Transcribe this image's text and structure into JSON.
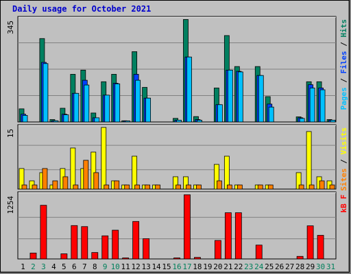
{
  "title": "Daily usage for October 2021",
  "colors": {
    "hits": "#008060",
    "files": "#0040ff",
    "pages": "#00c0ff",
    "visits": "#ffff00",
    "sites": "#ff8000",
    "kbytes": "#ff0000",
    "weekend_label": "#00805c",
    "weekday_label": "#000000",
    "title": "#0000cc",
    "panel_bg": "#c0c0c0"
  },
  "chart_data": [
    {
      "type": "bar",
      "panel": "hits-files-pages",
      "ymax_label": "345",
      "ylim": [
        0,
        345
      ],
      "legend": [
        "Pages",
        "Files",
        "Hits"
      ],
      "categories": [
        "1",
        "2",
        "3",
        "4",
        "5",
        "6",
        "7",
        "8",
        "9",
        "10",
        "11",
        "12",
        "13",
        "14",
        "15",
        "16",
        "17",
        "18",
        "19",
        "20",
        "21",
        "22",
        "23",
        "24",
        "25",
        "26",
        "27",
        "28",
        "29",
        "30",
        "31"
      ],
      "series": [
        {
          "name": "Hits",
          "values": [
            44,
            0,
            280,
            8,
            46,
            160,
            174,
            30,
            135,
            160,
            4,
            236,
            116,
            0,
            0,
            12,
            344,
            18,
            0,
            114,
            290,
            186,
            0,
            186,
            85,
            0,
            0,
            17,
            135,
            135,
            8
          ]
        },
        {
          "name": "Files",
          "values": [
            26,
            0,
            200,
            4,
            26,
            96,
            140,
            14,
            90,
            130,
            2,
            160,
            80,
            0,
            0,
            6,
            218,
            8,
            0,
            58,
            174,
            170,
            0,
            156,
            60,
            0,
            0,
            14,
            125,
            114,
            6
          ]
        },
        {
          "name": "Pages",
          "values": [
            22,
            0,
            196,
            4,
            24,
            96,
            124,
            14,
            90,
            128,
            2,
            140,
            80,
            0,
            0,
            6,
            218,
            6,
            0,
            58,
            174,
            168,
            0,
            156,
            50,
            0,
            0,
            12,
            114,
            108,
            6
          ]
        }
      ],
      "ylabel": "Pages / Files / Hits"
    },
    {
      "type": "bar",
      "panel": "sites-visits",
      "ymax_label": "15",
      "ylim": [
        0,
        15
      ],
      "legend": [
        "Sites",
        "Visits"
      ],
      "categories": [
        "1",
        "2",
        "3",
        "4",
        "5",
        "6",
        "7",
        "8",
        "9",
        "10",
        "11",
        "12",
        "13",
        "14",
        "15",
        "16",
        "17",
        "18",
        "19",
        "20",
        "21",
        "22",
        "23",
        "24",
        "25",
        "26",
        "27",
        "28",
        "29",
        "30",
        "31"
      ],
      "series": [
        {
          "name": "Visits",
          "values": [
            5,
            2,
            4,
            1,
            5,
            10,
            5,
            9,
            15,
            2,
            1,
            8,
            1,
            1,
            0,
            3,
            3,
            1,
            0,
            6,
            8,
            1,
            0,
            1,
            1,
            0,
            0,
            4,
            14,
            3,
            2
          ]
        },
        {
          "name": "Sites",
          "values": [
            1,
            1,
            5,
            2,
            3,
            1,
            7,
            4,
            1,
            2,
            1,
            1,
            1,
            1,
            0,
            1,
            1,
            1,
            0,
            2,
            1,
            1,
            0,
            1,
            1,
            0,
            0,
            1,
            1,
            2,
            1
          ]
        }
      ],
      "ylabel": "Sites / Visits"
    },
    {
      "type": "bar",
      "panel": "kbytes",
      "ymax_label": "1254",
      "ylim": [
        0,
        1254
      ],
      "legend": [
        "kB F"
      ],
      "categories": [
        "1",
        "2",
        "3",
        "4",
        "5",
        "6",
        "7",
        "8",
        "9",
        "10",
        "11",
        "12",
        "13",
        "14",
        "15",
        "16",
        "17",
        "18",
        "19",
        "20",
        "21",
        "22",
        "23",
        "24",
        "25",
        "26",
        "27",
        "28",
        "29",
        "30",
        "31"
      ],
      "series": [
        {
          "name": "kB F",
          "values": [
            0,
            115,
            1045,
            0,
            100,
            650,
            630,
            125,
            450,
            560,
            10,
            730,
            395,
            0,
            0,
            20,
            1250,
            30,
            0,
            360,
            900,
            900,
            0,
            270,
            0,
            0,
            0,
            50,
            645,
            460,
            0
          ]
        }
      ],
      "ylabel": "kB F"
    }
  ],
  "day_labels": [
    "1",
    "2",
    "3",
    "4",
    "5",
    "6",
    "7",
    "8",
    "9",
    "10",
    "11",
    "12",
    "13",
    "14",
    "15",
    "16",
    "17",
    "18",
    "19",
    "20",
    "21",
    "22",
    "23",
    "24",
    "25",
    "26",
    "27",
    "28",
    "29",
    "30",
    "31"
  ],
  "weekend_days": [
    2,
    3,
    9,
    10,
    16,
    17,
    23,
    24,
    30,
    31
  ]
}
